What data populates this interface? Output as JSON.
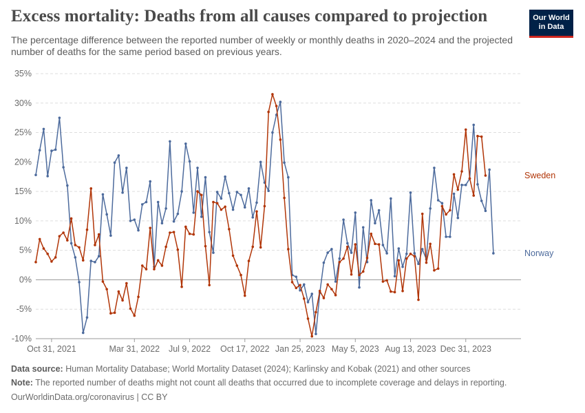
{
  "header": {
    "title": "Excess mortality: Deaths from all causes compared to projection",
    "subtitle": "The percentage difference between the reported number of weekly or monthly deaths in 2020–2024 and the projected number of deaths for the same period based on previous years."
  },
  "logo": {
    "line1": "Our World",
    "line2": "in Data"
  },
  "footer": {
    "source_label": "Data source:",
    "source_text": "Human Mortality Database; World Mortality Dataset (2024); Karlinsky and Kobak (2021) and other sources",
    "note_label": "Note:",
    "note_text": "The reported number of deaths might not count all deaths that occurred due to incomplete coverage and delays in reporting.",
    "credit": "OurWorldinData.org/coronavirus | CC BY"
  },
  "chart_data": {
    "type": "line",
    "title": "Excess mortality: Deaths from all causes compared to projection",
    "xlabel": "",
    "ylabel": "",
    "ylim": [
      -10,
      35
    ],
    "y_ticks": [
      -10,
      -5,
      0,
      5,
      10,
      15,
      20,
      25,
      30,
      35
    ],
    "y_tick_labels": [
      "-10%",
      "-5%",
      "0%",
      "5%",
      "10%",
      "15%",
      "20%",
      "25%",
      "30%",
      "35%"
    ],
    "x_start": 0,
    "x_end": 123,
    "x_ticks": [
      {
        "index": 4,
        "label": "Oct 31, 2021"
      },
      {
        "index": 25,
        "label": "Mar 31, 2022"
      },
      {
        "index": 39,
        "label": "Jul 9, 2022"
      },
      {
        "index": 53,
        "label": "Oct 17, 2022"
      },
      {
        "index": 67,
        "label": "Jan 25, 2023"
      },
      {
        "index": 81,
        "label": "May 5, 2023"
      },
      {
        "index": 95,
        "label": "Aug 13, 2023"
      },
      {
        "index": 109,
        "label": "Dec 31, 2023"
      }
    ],
    "grid": true,
    "legend_placement": "right-of-line-ends",
    "series": [
      {
        "name": "Norway",
        "color": "#4c6a9c",
        "values": [
          17.8,
          22.0,
          25.6,
          17.6,
          21.9,
          22.1,
          27.5,
          19.1,
          16.0,
          6.2,
          3.8,
          -0.4,
          -9.0,
          -6.4,
          3.2,
          3.0,
          4.0,
          14.5,
          11.1,
          7.5,
          19.9,
          21.1,
          14.8,
          19.0,
          10.0,
          10.2,
          8.4,
          12.8,
          13.2,
          16.7,
          2.2,
          13.2,
          9.6,
          12.1,
          23.5,
          9.9,
          11.2,
          15.0,
          23.1,
          20.1,
          11.4,
          19.0,
          10.7,
          17.4,
          8.1,
          4.6,
          14.9,
          13.8,
          17.5,
          14.7,
          11.9,
          14.9,
          14.4,
          12.3,
          15.5,
          10.6,
          13.1,
          20.0,
          16.5,
          15.1,
          25.0,
          28.0,
          30.2,
          19.9,
          17.4,
          0.8,
          0.5,
          -1.8,
          -0.8,
          -3.8,
          -2.4,
          -9.2,
          -2.2,
          2.9,
          4.6,
          5.2,
          -0.3,
          3.6,
          10.2,
          6.2,
          4.6,
          11.4,
          -1.3,
          8.9,
          3.0,
          13.5,
          9.6,
          11.8,
          5.9,
          4.5,
          13.8,
          0.6,
          5.3,
          2.2,
          4.4,
          14.8,
          4.5,
          2.7,
          5.2,
          3.5,
          12.1,
          19.0,
          13.5,
          13.0,
          7.3,
          7.3,
          14.6,
          10.5,
          16.1,
          16.1,
          17.2,
          26.3,
          16.2,
          13.4,
          11.7,
          18.7,
          4.5
        ]
      },
      {
        "name": "Sweden",
        "color": "#b13507",
        "values": [
          3.0,
          6.9,
          5.3,
          4.4,
          3.1,
          3.8,
          7.4,
          8.0,
          6.7,
          10.4,
          5.9,
          5.5,
          3.3,
          8.5,
          15.5,
          5.9,
          7.7,
          -0.3,
          -1.6,
          -5.7,
          -5.6,
          -2.0,
          -3.5,
          -0.6,
          -4.9,
          -6.1,
          -2.9,
          2.4,
          1.8,
          8.8,
          1.8,
          3.3,
          2.4,
          5.6,
          8.0,
          8.1,
          5.1,
          -1.2,
          9.0,
          7.8,
          7.7,
          15.0,
          14.4,
          5.7,
          -0.9,
          13.2,
          13.0,
          11.9,
          12.4,
          8.6,
          4.1,
          2.4,
          0.8,
          -2.7,
          3.2,
          5.6,
          11.6,
          5.5,
          12.5,
          28.5,
          31.5,
          29.5,
          23.8,
          13.9,
          5.2,
          -0.4,
          -1.4,
          -0.9,
          -3.2,
          -6.6,
          -9.6,
          -5.5,
          -1.9,
          -3.1,
          -0.8,
          -1.6,
          -2.6,
          3.0,
          3.6,
          5.6,
          0.9,
          6.0,
          0.8,
          1.4,
          3.7,
          7.8,
          6.1,
          6.0,
          -0.3,
          -0.1,
          -2.0,
          -2.1,
          3.3,
          -1.9,
          3.6,
          4.4,
          4.0,
          -3.4,
          11.2,
          2.9,
          6.1,
          1.6,
          1.9,
          12.5,
          11.1,
          11.8,
          17.9,
          15.3,
          18.4,
          25.5,
          17.2,
          14.3,
          24.4,
          24.3,
          17.7
        ]
      }
    ]
  }
}
